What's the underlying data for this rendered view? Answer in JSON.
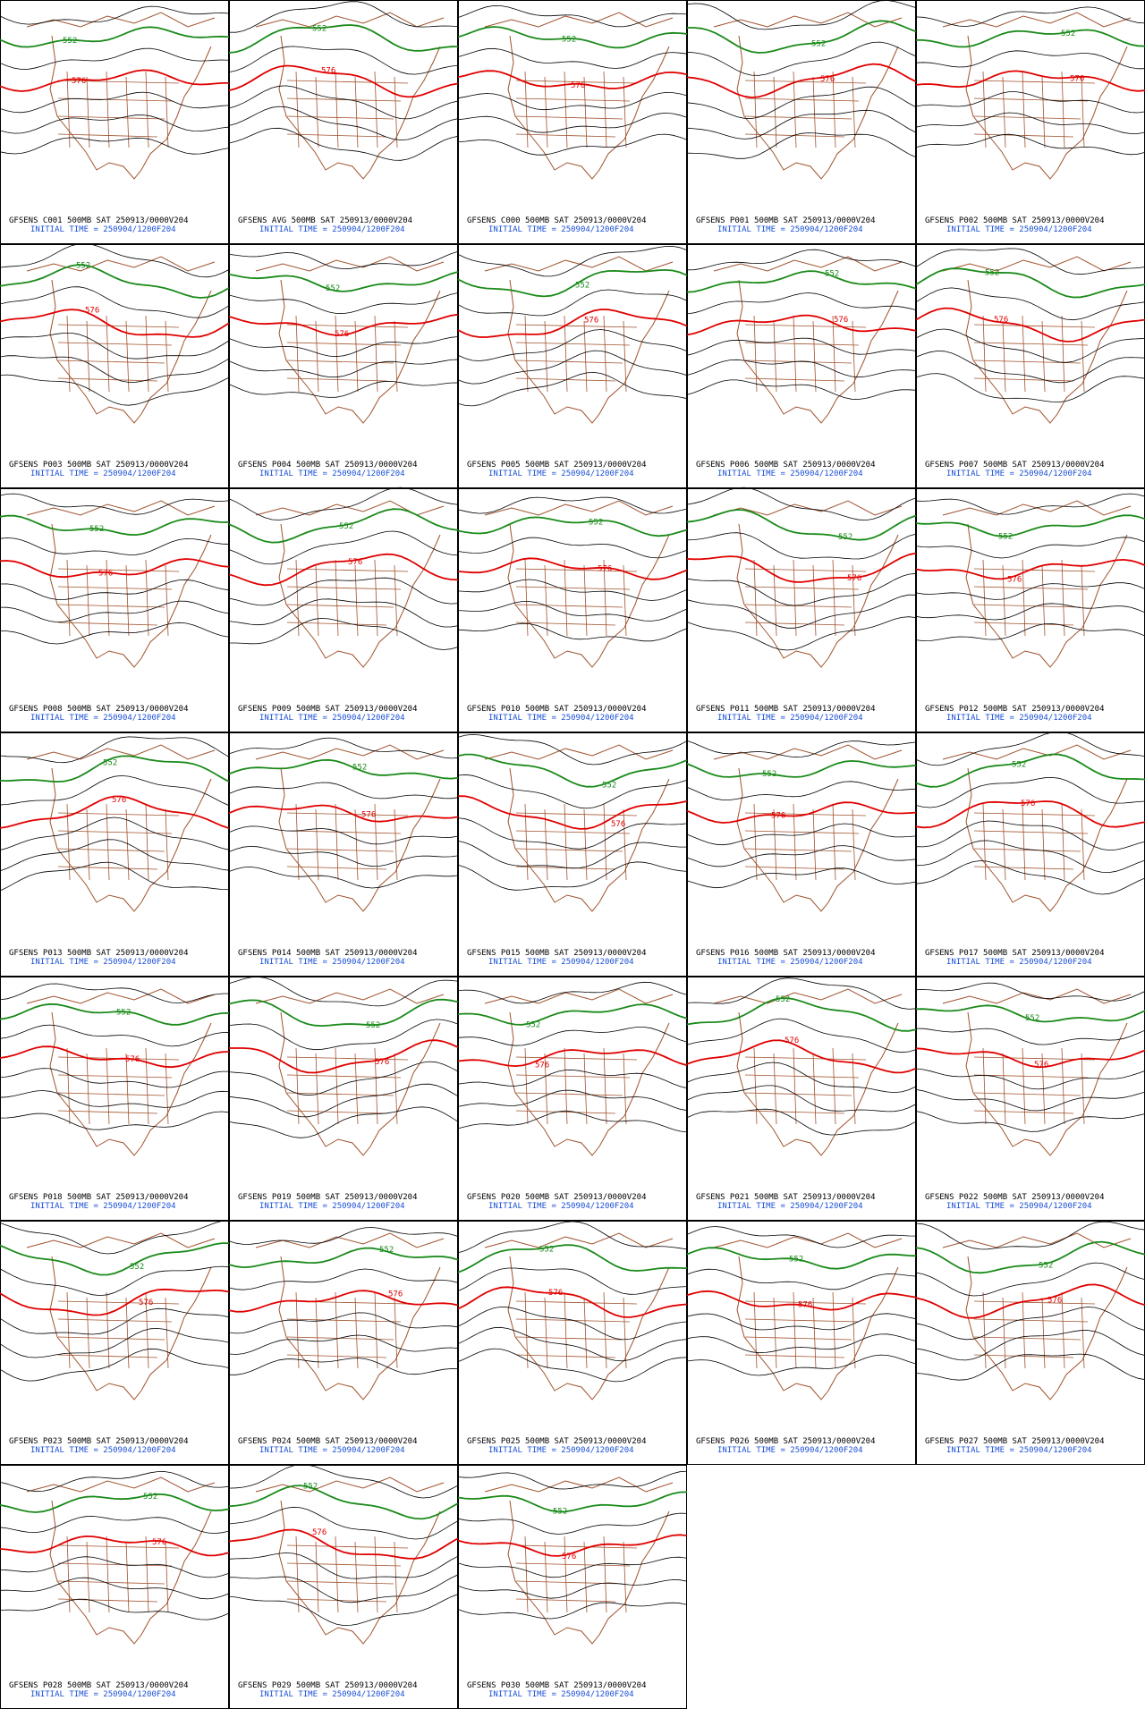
{
  "panels": [
    {
      "title": "GFSENS C001 500MB SAT 250913/0000V204",
      "initial_time": "INITIAL TIME = 250904/1200F204",
      "contour_labels": [
        "552",
        "576"
      ]
    },
    {
      "title": "GFSENS AVG 500MB SAT 250913/0000V204",
      "initial_time": "INITIAL TIME = 250904/1200F204",
      "contour_labels": [
        "552",
        "576"
      ]
    },
    {
      "title": "GFSENS C000 500MB SAT 250913/0000V204",
      "initial_time": "INITIAL TIME = 250904/1200F204",
      "contour_labels": [
        "552",
        "576"
      ]
    },
    {
      "title": "GFSENS P001 500MB SAT 250913/0000V204",
      "initial_time": "INITIAL TIME = 250904/1200F204",
      "contour_labels": [
        "552",
        "576"
      ]
    },
    {
      "title": "GFSENS P002 500MB SAT 250913/0000V204",
      "initial_time": "INITIAL TIME = 250904/1200F204",
      "contour_labels": [
        "552",
        "576"
      ]
    },
    {
      "title": "GFSENS P003 500MB SAT 250913/0000V204",
      "initial_time": "INITIAL TIME = 250904/1200F204",
      "contour_labels": [
        "552",
        "576"
      ]
    },
    {
      "title": "GFSENS P004 500MB SAT 250913/0000V204",
      "initial_time": "INITIAL TIME = 250904/1200F204",
      "contour_labels": [
        "552",
        "576"
      ]
    },
    {
      "title": "GFSENS P005 500MB SAT 250913/0000V204",
      "initial_time": "INITIAL TIME = 250904/1200F204",
      "contour_labels": [
        "552",
        "576"
      ]
    },
    {
      "title": "GFSENS P006 500MB SAT 250913/0000V204",
      "initial_time": "INITIAL TIME = 250904/1200F204",
      "contour_labels": [
        "552",
        "576"
      ]
    },
    {
      "title": "GFSENS P007 500MB SAT 250913/0000V204",
      "initial_time": "INITIAL TIME = 250904/1200F204",
      "contour_labels": [
        "552",
        "576"
      ]
    },
    {
      "title": "GFSENS P008 500MB SAT 250913/0000V204",
      "initial_time": "INITIAL TIME = 250904/1200F204",
      "contour_labels": [
        "552",
        "576"
      ]
    },
    {
      "title": "GFSENS P009 500MB SAT 250913/0000V204",
      "initial_time": "INITIAL TIME = 250904/1200F204",
      "contour_labels": [
        "552",
        "576"
      ]
    },
    {
      "title": "GFSENS P010 500MB SAT 250913/0000V204",
      "initial_time": "INITIAL TIME = 250904/1200F204",
      "contour_labels": [
        "552",
        "576"
      ]
    },
    {
      "title": "GFSENS P011 500MB SAT 250913/0000V204",
      "initial_time": "INITIAL TIME = 250904/1200F204",
      "contour_labels": [
        "552",
        "576"
      ]
    },
    {
      "title": "GFSENS P012 500MB SAT 250913/0000V204",
      "initial_time": "INITIAL TIME = 250904/1200F204",
      "contour_labels": [
        "552",
        "576"
      ]
    },
    {
      "title": "GFSENS P013 500MB SAT 250913/0000V204",
      "initial_time": "INITIAL TIME = 250904/1200F204",
      "contour_labels": [
        "552",
        "576"
      ]
    },
    {
      "title": "GFSENS P014 500MB SAT 250913/0000V204",
      "initial_time": "INITIAL TIME = 250904/1200F204",
      "contour_labels": [
        "552",
        "576"
      ]
    },
    {
      "title": "GFSENS P015 500MB SAT 250913/0000V204",
      "initial_time": "INITIAL TIME = 250904/1200F204",
      "contour_labels": [
        "552",
        "576"
      ]
    },
    {
      "title": "GFSENS P016 500MB SAT 250913/0000V204",
      "initial_time": "INITIAL TIME = 250904/1200F204",
      "contour_labels": [
        "552",
        "576"
      ]
    },
    {
      "title": "GFSENS P017 500MB SAT 250913/0000V204",
      "initial_time": "INITIAL TIME = 250904/1200F204",
      "contour_labels": [
        "552",
        "576"
      ]
    },
    {
      "title": "GFSENS P018 500MB SAT 250913/0000V204",
      "initial_time": "INITIAL TIME = 250904/1200F204",
      "contour_labels": [
        "552",
        "576"
      ]
    },
    {
      "title": "GFSENS P019 500MB SAT 250913/0000V204",
      "initial_time": "INITIAL TIME = 250904/1200F204",
      "contour_labels": [
        "552",
        "576"
      ]
    },
    {
      "title": "GFSENS P020 500MB SAT 250913/0000V204",
      "initial_time": "INITIAL TIME = 250904/1200F204",
      "contour_labels": [
        "552",
        "576"
      ]
    },
    {
      "title": "GFSENS P021 500MB SAT 250913/0000V204",
      "initial_time": "INITIAL TIME = 250904/1200F204",
      "contour_labels": [
        "552",
        "576"
      ]
    },
    {
      "title": "GFSENS P022 500MB SAT 250913/0000V204",
      "initial_time": "INITIAL TIME = 250904/1200F204",
      "contour_labels": [
        "552",
        "576"
      ]
    },
    {
      "title": "GFSENS P023 500MB SAT 250913/0000V204",
      "initial_time": "INITIAL TIME = 250904/1200F204",
      "contour_labels": [
        "552",
        "576"
      ]
    },
    {
      "title": "GFSENS P024 500MB SAT 250913/0000V204",
      "initial_time": "INITIAL TIME = 250904/1200F204",
      "contour_labels": [
        "552",
        "576"
      ]
    },
    {
      "title": "GFSENS P025 500MB SAT 250913/0000V204",
      "initial_time": "INITIAL TIME = 250904/1200F204",
      "contour_labels": [
        "552",
        "576"
      ]
    },
    {
      "title": "GFSENS P026 500MB SAT 250913/0000V204",
      "initial_time": "INITIAL TIME = 250904/1200F204",
      "contour_labels": [
        "552",
        "576"
      ]
    },
    {
      "title": "GFSENS P027 500MB SAT 250913/0000V204",
      "initial_time": "INITIAL TIME = 250904/1200F204",
      "contour_labels": [
        "552",
        "576"
      ]
    },
    {
      "title": "GFSENS P028 500MB SAT 250913/0000V204",
      "initial_time": "INITIAL TIME = 250904/1200F204",
      "contour_labels": [
        "552",
        "576"
      ]
    },
    {
      "title": "GFSENS P029 500MB SAT 250913/0000V204",
      "initial_time": "INITIAL TIME = 250904/1200F204",
      "contour_labels": [
        "552",
        "576"
      ]
    },
    {
      "title": "GFSENS P030 500MB SAT 250913/0000V204",
      "initial_time": "INITIAL TIME = 250904/1200F204",
      "contour_labels": [
        "552",
        "576"
      ]
    }
  ]
}
